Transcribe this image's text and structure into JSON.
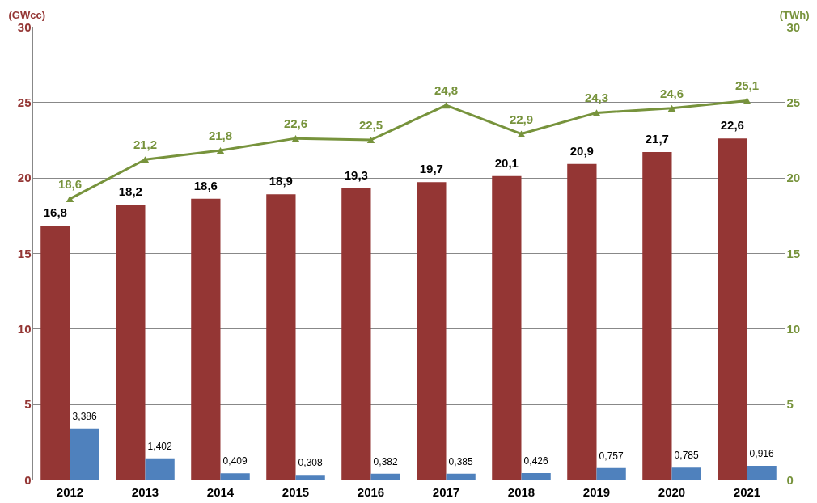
{
  "chart_data": {
    "type": "bar",
    "categories": [
      "2012",
      "2013",
      "2014",
      "2015",
      "2016",
      "2017",
      "2018",
      "2019",
      "2020",
      "2021"
    ],
    "ylabel": "(GWcc)",
    "y2label": "(TWh)",
    "ylim": [
      0,
      30
    ],
    "yticks": [
      0,
      5,
      10,
      15,
      20,
      25,
      30
    ],
    "y2lim": [
      0,
      30
    ],
    "y2ticks": [
      0,
      5,
      10,
      15,
      20,
      25,
      30
    ],
    "grid": "y",
    "legend": false,
    "marker": "triangle",
    "series": [
      {
        "color": "#943634",
        "values": [
          16.8,
          18.2,
          18.6,
          18.9,
          19.3,
          19.7,
          20.1,
          20.9,
          21.7,
          22.6
        ],
        "value_labels": [
          "16,8",
          "18,2",
          "18,6",
          "18,9",
          "19,3",
          "19,7",
          "20,1",
          "20,9",
          "21,7",
          "22,6"
        ]
      },
      {
        "color": "#4f81bd",
        "values": [
          3.386,
          1.402,
          0.409,
          0.308,
          0.382,
          0.385,
          0.426,
          0.757,
          0.785,
          0.916
        ],
        "value_labels": [
          "3,386",
          "1,402",
          "0,409",
          "0,308",
          "0,382",
          "0,385",
          "0,426",
          "0,757",
          "0,785",
          "0,916"
        ]
      },
      {
        "type": "line",
        "axis": "y2",
        "color": "#77933c",
        "values": [
          18.6,
          21.2,
          21.8,
          22.6,
          22.5,
          24.8,
          22.9,
          24.3,
          24.6,
          25.1
        ],
        "value_labels": [
          "18,6",
          "21,2",
          "21,8",
          "22,6",
          "22,5",
          "24,8",
          "22,9",
          "24,3",
          "24,6",
          "25,1"
        ]
      }
    ]
  }
}
